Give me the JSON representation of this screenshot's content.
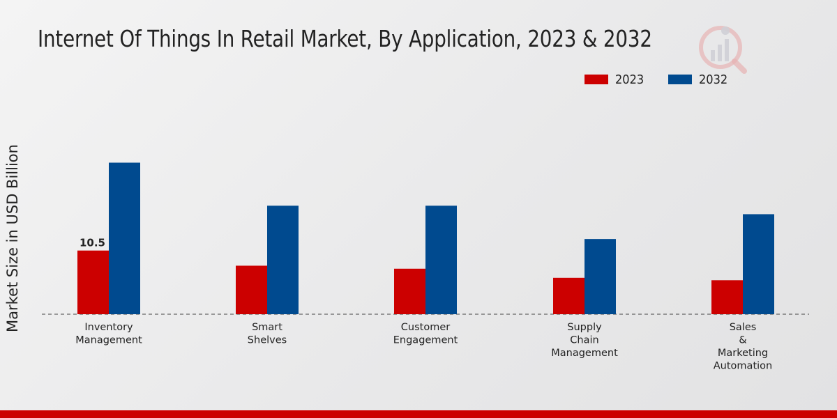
{
  "chart_data": {
    "type": "bar",
    "title": "Internet Of Things In Retail Market, By Application, 2023 & 2032",
    "xlabel": "",
    "ylabel": "Market Size in USD Billion",
    "categories": [
      [
        "Inventory",
        "Management"
      ],
      [
        "Smart",
        "Shelves"
      ],
      [
        "Customer",
        "Engagement"
      ],
      [
        "Supply",
        "Chain",
        "Management"
      ],
      [
        "Sales",
        "&",
        "Marketing",
        "Automation"
      ]
    ],
    "series": [
      {
        "name": "2023",
        "color": "#cc0000",
        "values": [
          10.5,
          8.0,
          7.5,
          6.0,
          5.6
        ]
      },
      {
        "name": "2032",
        "color": "#004a8f",
        "values": [
          25.0,
          17.9,
          17.9,
          12.4,
          16.5
        ]
      }
    ],
    "data_labels": [
      {
        "series": 0,
        "index": 0,
        "text": "10.5"
      }
    ],
    "ylim": [
      0,
      40
    ],
    "grid": false,
    "legend_position": "top-right"
  },
  "legend": {
    "items": [
      {
        "label": "2023",
        "color": "#cc0000"
      },
      {
        "label": "2032",
        "color": "#004a8f"
      }
    ]
  },
  "brand": {
    "accent": "#cc0000"
  }
}
